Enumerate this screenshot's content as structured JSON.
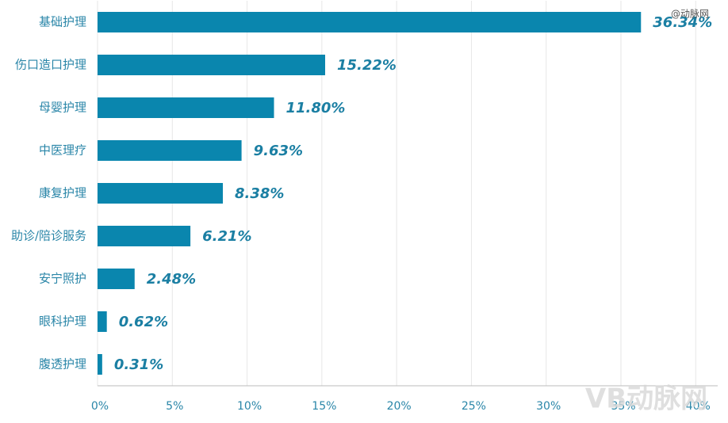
{
  "chart_data": {
    "type": "hbar",
    "categories": [
      "基础护理",
      "伤口造口护理",
      "母婴护理",
      "中医理疗",
      "康复护理",
      "助诊/陪诊服务",
      "安宁照护",
      "眼科护理",
      "腹透护理"
    ],
    "values": [
      36.34,
      15.22,
      11.8,
      9.63,
      8.38,
      6.21,
      2.48,
      0.62,
      0.31
    ],
    "value_labels": [
      "36.34%",
      "15.22%",
      "11.80%",
      "9.63%",
      "8.38%",
      "6.21%",
      "2.48%",
      "0.62%",
      "0.31%"
    ],
    "color": "#0a86ae",
    "xlim": [
      0,
      42
    ],
    "xticks": [
      {
        "value": 0,
        "label": "0%"
      },
      {
        "value": 5,
        "label": "5%"
      },
      {
        "value": 10,
        "label": "10%"
      },
      {
        "value": 15,
        "label": "15%"
      },
      {
        "value": 20,
        "label": "20%"
      },
      {
        "value": 25,
        "label": "25%"
      },
      {
        "value": 30,
        "label": "30%"
      },
      {
        "value": 35,
        "label": "35%"
      },
      {
        "value": 40,
        "label": "40%"
      }
    ],
    "grid": true,
    "watermarks": [
      "@动脉网",
      "VB动脉网"
    ]
  }
}
